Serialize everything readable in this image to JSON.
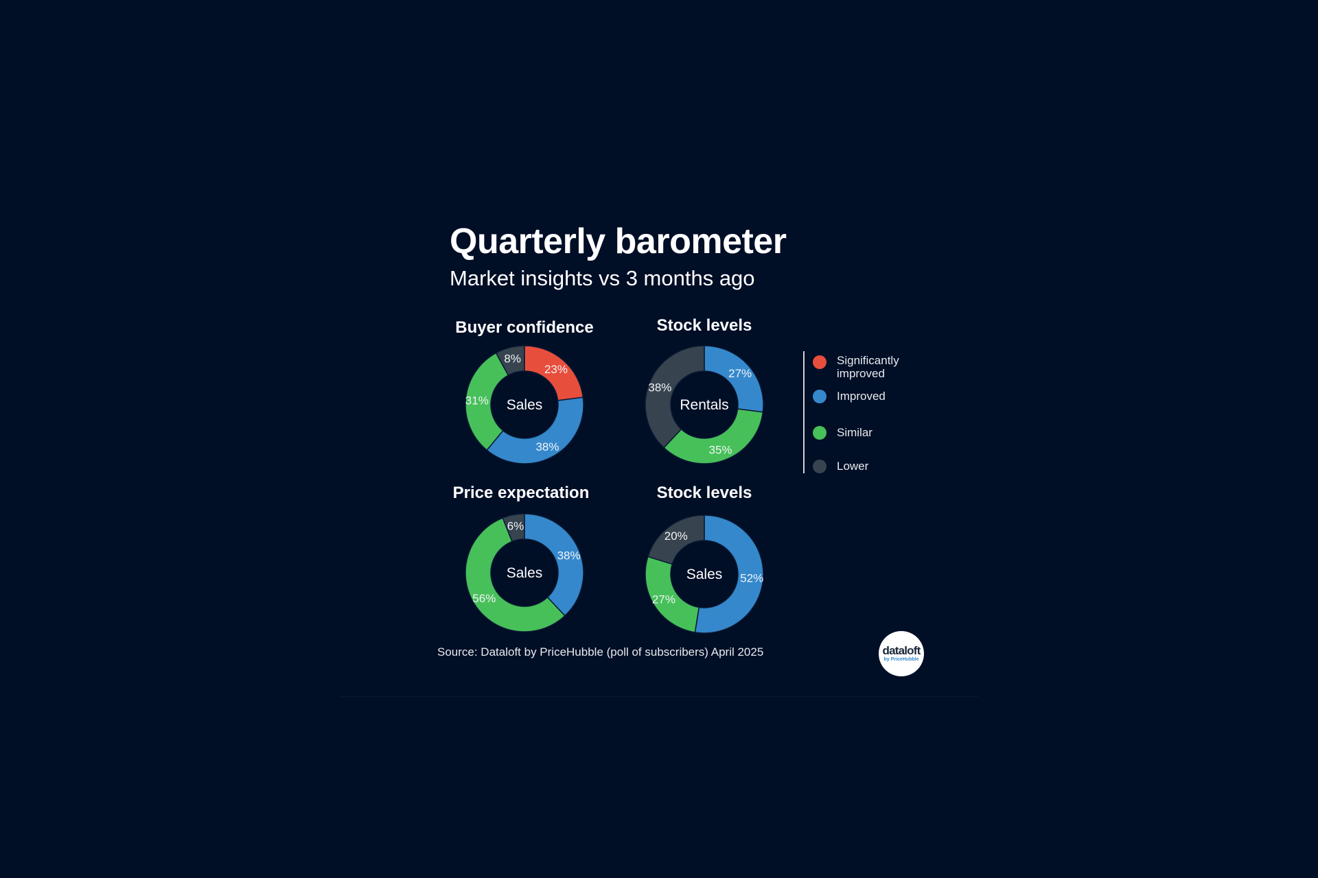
{
  "title": "Quarterly barometer",
  "subtitle": "Market insights vs 3 months ago",
  "source": "Source: Dataloft by PriceHubble (poll of subscribers) April 2025",
  "logo": {
    "main": "dataloft",
    "sub": "by PriceHubble"
  },
  "colors": {
    "Significantly improved": "#e84e3c",
    "Improved": "#3588cc",
    "Similar": "#47c05a",
    "Lower": "#37434f",
    "background": "#000e26"
  },
  "legend": [
    {
      "label": "Significantly improved",
      "color": "#e84e3c"
    },
    {
      "label": "Improved",
      "color": "#3588cc"
    },
    {
      "label": "Similar",
      "color": "#47c05a"
    },
    {
      "label": "Lower",
      "color": "#37434f"
    }
  ],
  "chart_data": [
    {
      "type": "pie",
      "donut": true,
      "title": "Buyer confidence",
      "center_label": "Sales",
      "slices": [
        {
          "category": "Significantly improved",
          "value": 23,
          "label": "23%"
        },
        {
          "category": "Improved",
          "value": 38,
          "label": "38%"
        },
        {
          "category": "Similar",
          "value": 31,
          "label": "31%"
        },
        {
          "category": "Lower",
          "value": 8,
          "label": "8%"
        }
      ]
    },
    {
      "type": "pie",
      "donut": true,
      "title": "Stock levels",
      "center_label": "Rentals",
      "slices": [
        {
          "category": "Improved",
          "value": 27,
          "label": "27%"
        },
        {
          "category": "Similar",
          "value": 35,
          "label": "35%"
        },
        {
          "category": "Lower",
          "value": 38,
          "label": "38%"
        }
      ]
    },
    {
      "type": "pie",
      "donut": true,
      "title": "Price expectation",
      "center_label": "Sales",
      "slices": [
        {
          "category": "Improved",
          "value": 38,
          "label": "38%"
        },
        {
          "category": "Similar",
          "value": 56,
          "label": "56%"
        },
        {
          "category": "Lower",
          "value": 6,
          "label": "6%"
        }
      ]
    },
    {
      "type": "pie",
      "donut": true,
      "title": "Stock levels",
      "center_label": "Sales",
      "slices": [
        {
          "category": "Improved",
          "value": 52,
          "label": "52%"
        },
        {
          "category": "Similar",
          "value": 27,
          "label": "27%"
        },
        {
          "category": "Lower",
          "value": 20,
          "label": "20%"
        }
      ]
    }
  ]
}
